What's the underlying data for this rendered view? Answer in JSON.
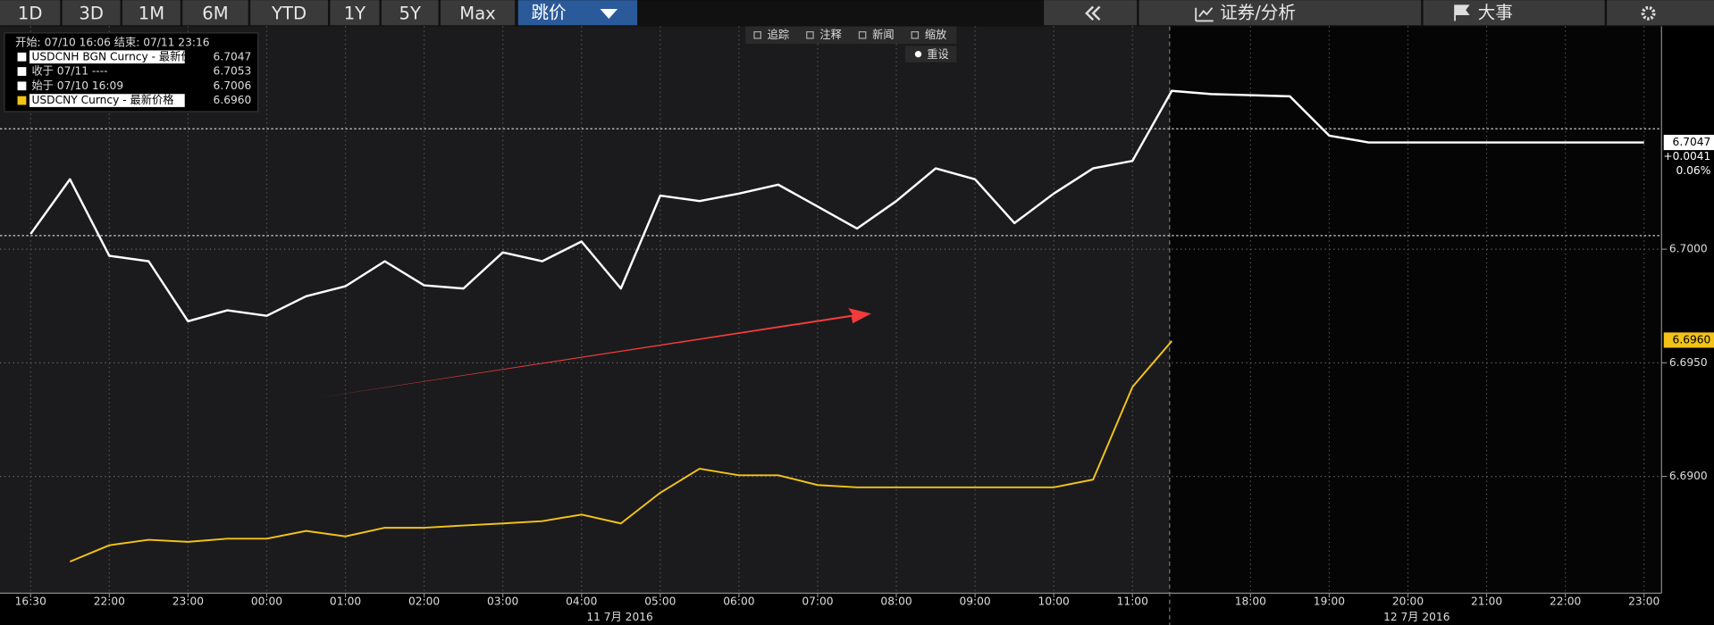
{
  "toolbar": {
    "periods": [
      "1D",
      "3D",
      "1M",
      "6M",
      "YTD",
      "1Y",
      "5Y",
      "Max"
    ],
    "mode": "跳价",
    "analysis": "证券/分析",
    "events": "大事"
  },
  "chart_tools": [
    "追踪",
    "注释",
    "新闻",
    "缩放"
  ],
  "reset": "重设",
  "chart_data": {
    "type": "line",
    "range_label": "开始: 07/10 16:06 结束: 07/11 23:16",
    "categories": [
      "16:30",
      null,
      "22:00",
      null,
      "23:00",
      null,
      "00:00",
      null,
      "01:00",
      null,
      "02:00",
      null,
      "03:00",
      null,
      "04:00",
      null,
      "05:00",
      null,
      "06:00",
      null,
      "07:00",
      null,
      "08:00",
      null,
      "09:00",
      null,
      "10:00",
      null,
      "11:00",
      null,
      null,
      "18:00",
      null,
      "19:00",
      null,
      "20:00",
      null,
      "21:00",
      null,
      "22:00",
      null,
      "23:00"
    ],
    "date_labels": [
      "11 7月 2016",
      "12 7月 2016"
    ],
    "series": [
      {
        "name": "USDCNH BGN Curncy - 最新价格",
        "color": "#ffffff",
        "legend_value": 6.7047,
        "values": [
          6.70067,
          6.70308,
          6.69971,
          6.69947,
          6.69683,
          6.69731,
          6.69707,
          6.69793,
          6.69837,
          6.69947,
          6.69841,
          6.69827,
          6.69986,
          6.69947,
          6.70034,
          6.69827,
          6.70236,
          6.70212,
          6.70245,
          6.70284,
          6.70188,
          6.70091,
          6.70212,
          6.70356,
          6.70308,
          6.70115,
          6.70245,
          6.70356,
          6.70389,
          6.70697,
          6.70683,
          6.70678,
          6.70673,
          6.705,
          6.7047,
          6.7047,
          6.7047,
          6.7047,
          6.7047,
          6.7047,
          6.7047,
          6.7047
        ]
      },
      {
        "name": "USDCNY Curncy - 最新价格",
        "color": "#f2c318",
        "legend_value": {
          "value": 6.696,
          "label": "6.6960"
        },
        "values": [
          null,
          6.68625,
          6.68697,
          6.68721,
          6.68712,
          6.68726,
          6.68726,
          6.6876,
          6.68736,
          6.68774,
          6.68774,
          6.68784,
          6.68793,
          6.68803,
          6.68832,
          6.68793,
          6.68928,
          6.69034,
          6.69005,
          6.69005,
          6.68962,
          6.68952,
          6.68952,
          6.68952,
          6.68952,
          6.68952,
          6.68952,
          6.68986,
          6.69394,
          6.69596,
          null,
          null,
          null,
          null,
          null,
          null,
          null,
          null,
          null,
          null,
          null,
          null
        ]
      }
    ],
    "ref_lines": [
      {
        "name": "收于 07/11 ----",
        "value": 6.7053
      },
      {
        "name": "始于 07/10 16:09",
        "value": 6.7006
      }
    ],
    "change": {
      "value": 0.0041,
      "label": "+0.0041"
    },
    "change_pct": {
      "value": 0.06,
      "label": "0.06%"
    },
    "ylim": [
      6.68486,
      6.70981
    ],
    "yticks": [
      {
        "value": 6.69,
        "label": "6.6900"
      },
      {
        "value": 6.695,
        "label": "6.6950"
      },
      {
        "value": 6.7,
        "label": "6.7000"
      }
    ],
    "grid": true
  }
}
